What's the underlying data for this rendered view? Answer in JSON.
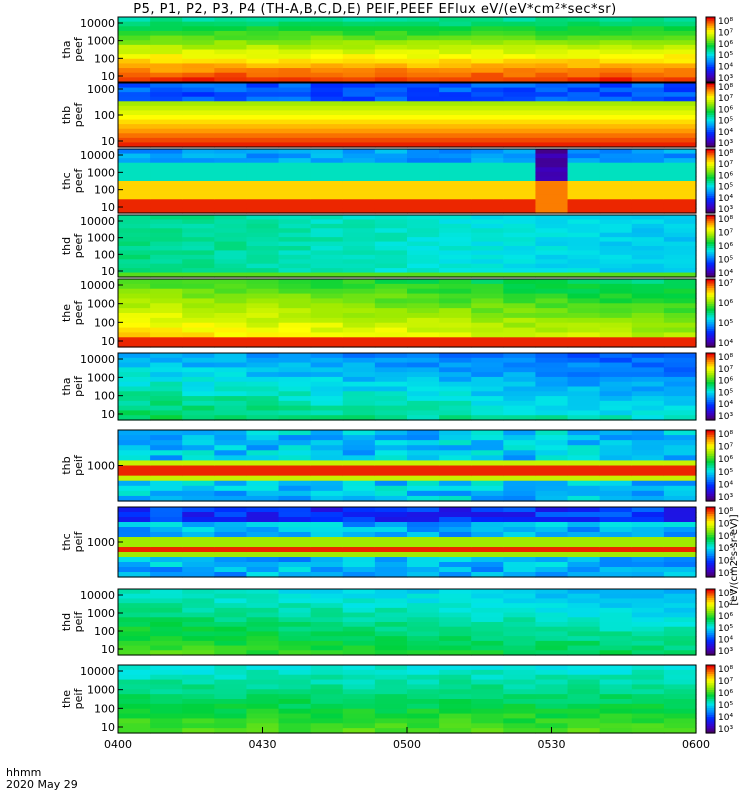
{
  "title": "P5, P1, P2, P3, P4 (TH-A,B,C,D,E) PEIF,PEEF EFlux eV/(eV*cm²*sec*sr)",
  "footer": {
    "line1": "hhmm",
    "line2": "2020 May 29"
  },
  "colorbar_unit": "[eV/(cm2-s-sr-eV)]",
  "chart_data": {
    "type": "heatmap",
    "x_tick_labels": [
      "0400",
      "0430",
      "0500",
      "0530",
      "0600"
    ],
    "x_range": [
      "0400",
      "0600"
    ],
    "panels": [
      {
        "name": "tha peef",
        "yticks": [
          "10",
          "100",
          "1000",
          "10000"
        ],
        "cb_ticks": [
          "10³",
          "10⁴",
          "10⁵",
          "10⁶",
          "10⁷",
          "10⁸"
        ]
      },
      {
        "name": "thb peef",
        "yticks": [
          "10",
          "100",
          "1000"
        ],
        "cb_ticks": [
          "10³",
          "10⁴",
          "10⁵",
          "10⁶",
          "10⁷",
          "10⁸"
        ]
      },
      {
        "name": "thc peef",
        "yticks": [
          "10",
          "100",
          "1000",
          "10000"
        ],
        "cb_ticks": [
          "10³",
          "10⁴",
          "10⁵",
          "10⁶",
          "10⁷",
          "10⁸"
        ]
      },
      {
        "name": "thd peef",
        "yticks": [
          "10",
          "100",
          "1000",
          "10000"
        ],
        "cb_ticks": [
          "10⁴",
          "10⁵",
          "10⁶",
          "10⁷",
          "10⁸"
        ]
      },
      {
        "name": "the peef",
        "yticks": [
          "10",
          "100",
          "1000",
          "10000"
        ],
        "cb_ticks": [
          "10⁴",
          "10⁵",
          "10⁶",
          "10⁷"
        ]
      },
      {
        "name": "tha peif",
        "yticks": [
          "10",
          "100",
          "1000",
          "10000"
        ],
        "cb_ticks": [
          "10³",
          "10⁴",
          "10⁵",
          "10⁶",
          "10⁷",
          "10⁸"
        ]
      },
      {
        "name": "thb peif",
        "yticks": [
          "1000"
        ],
        "cb_ticks": [
          "10³",
          "10⁴",
          "10⁵",
          "10⁶",
          "10⁷",
          "10⁸"
        ]
      },
      {
        "name": "thc peif",
        "yticks": [
          "1000"
        ],
        "cb_ticks": [
          "10³",
          "10⁴",
          "10⁵",
          "10⁶",
          "10⁷",
          "10⁸"
        ]
      },
      {
        "name": "thd peif",
        "yticks": [
          "10",
          "100",
          "1000",
          "10000"
        ],
        "cb_ticks": [
          "10³",
          "10⁴",
          "10⁵",
          "10⁶",
          "10⁷",
          "10⁸"
        ]
      },
      {
        "name": "the peif",
        "yticks": [
          "10",
          "100",
          "1000",
          "10000"
        ],
        "cb_ticks": [
          "10³",
          "10⁴",
          "10⁵",
          "10⁶",
          "10⁷",
          "10⁸"
        ]
      }
    ]
  }
}
